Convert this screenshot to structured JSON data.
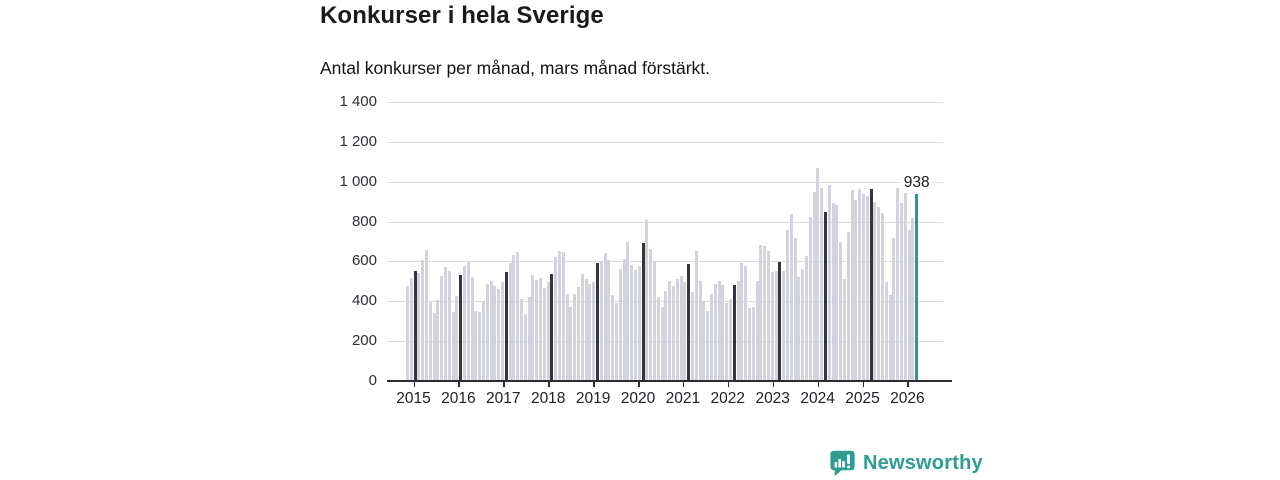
{
  "header": {
    "title": "Konkurser i hela Sverige",
    "subtitle": "Antal konkurser per månad, mars månad förstärkt."
  },
  "chart_data": {
    "type": "bar",
    "title": "Konkurser i hela Sverige",
    "subtitle": "Antal konkurser per månad, mars månad förstärkt.",
    "frequency": "monthly",
    "x_start": "2015-01",
    "x_end": "2026-03",
    "x_tick_labels": [
      "2015",
      "2016",
      "2017",
      "2018",
      "2019",
      "2020",
      "2021",
      "2022",
      "2023",
      "2024",
      "2025",
      "2026"
    ],
    "y_ticks": [
      {
        "label": "1 400",
        "value": 1400
      },
      {
        "label": "1 200",
        "value": 1200
      },
      {
        "label": "1 000",
        "value": 1000
      },
      {
        "label": "800",
        "value": 800
      },
      {
        "label": "600",
        "value": 600
      },
      {
        "label": "400",
        "value": 400
      },
      {
        "label": "200",
        "value": 200
      },
      {
        "label": "0",
        "value": 0
      }
    ],
    "ylim": [
      0,
      1400
    ],
    "grid": true,
    "highlight": {
      "month_index_in_year": 2,
      "month_name": "mars"
    },
    "last_value_label": "938",
    "series": [
      {
        "name": "Antal konkurser per månad",
        "values": [
          475,
          515,
          550,
          540,
          605,
          655,
          395,
          340,
          405,
          525,
          570,
          550,
          345,
          425,
          530,
          575,
          595,
          520,
          350,
          345,
          400,
          485,
          500,
          475,
          460,
          495,
          545,
          590,
          630,
          645,
          410,
          335,
          420,
          530,
          505,
          515,
          465,
          495,
          535,
          620,
          650,
          645,
          435,
          370,
          435,
          470,
          535,
          510,
          485,
          495,
          590,
          600,
          640,
          605,
          430,
          390,
          560,
          610,
          700,
          580,
          555,
          575,
          695,
          810,
          660,
          600,
          420,
          370,
          450,
          500,
          475,
          510,
          525,
          495,
          585,
          445,
          650,
          500,
          400,
          350,
          435,
          485,
          500,
          480,
          390,
          410,
          480,
          500,
          590,
          575,
          365,
          370,
          500,
          685,
          680,
          650,
          545,
          550,
          595,
          550,
          760,
          840,
          720,
          520,
          560,
          625,
          825,
          950,
          1070,
          970,
          850,
          985,
          895,
          885,
          700,
          510,
          750,
          960,
          910,
          965,
          940,
          930,
          965,
          900,
          875,
          845,
          495,
          430,
          720,
          970,
          895,
          945,
          760,
          820,
          938
        ]
      }
    ],
    "colors": {
      "bar": "#d3d3dd",
      "march_bar": "#35353f",
      "latest_bar": "#17a294",
      "grid": "#dcdce0",
      "axis": "#2b2b33"
    }
  },
  "footer": {
    "logo_text": "Newsworthy",
    "logo_color": "#2e9c8f"
  }
}
